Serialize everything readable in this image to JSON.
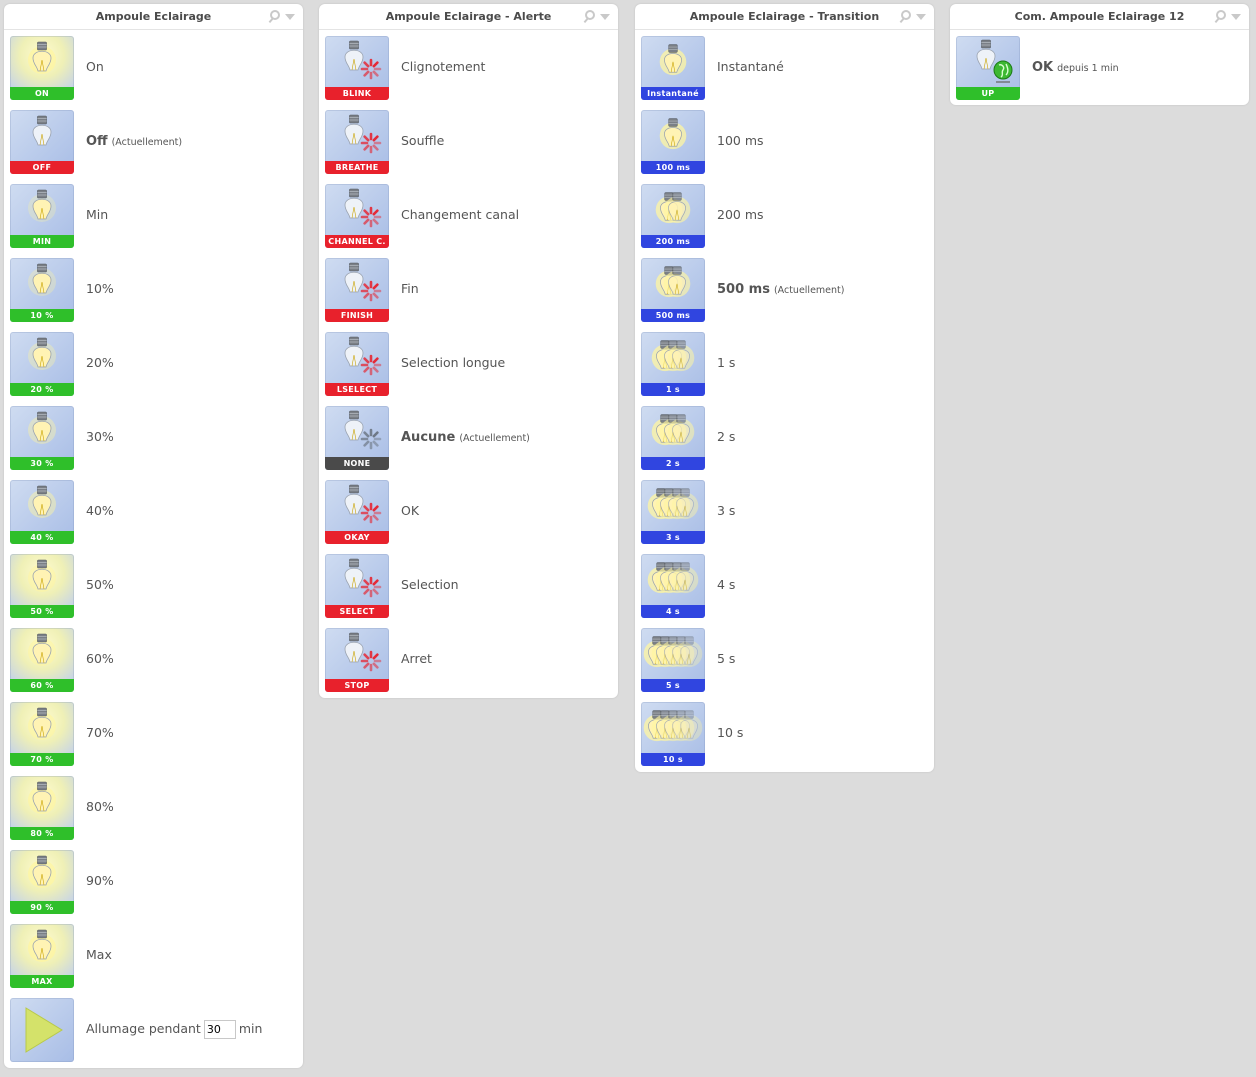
{
  "panels": [
    {
      "title": "Ampoule Eclairage",
      "rows": [
        {
          "label": "On",
          "tile": "ON",
          "color": "green",
          "lit": 1.0,
          "current": false
        },
        {
          "label": "Off",
          "tile": "OFF",
          "color": "red",
          "lit": 0.0,
          "current": true
        },
        {
          "label": "Min",
          "tile": "MIN",
          "color": "green",
          "lit": 0.05,
          "current": false
        },
        {
          "label": "10%",
          "tile": "10 %",
          "color": "green",
          "lit": 0.1,
          "current": false
        },
        {
          "label": "20%",
          "tile": "20 %",
          "color": "green",
          "lit": 0.2,
          "current": false
        },
        {
          "label": "30%",
          "tile": "30 %",
          "color": "green",
          "lit": 0.3,
          "current": false
        },
        {
          "label": "40%",
          "tile": "40 %",
          "color": "green",
          "lit": 0.4,
          "current": false
        },
        {
          "label": "50%",
          "tile": "50 %",
          "color": "green",
          "lit": 0.5,
          "current": false
        },
        {
          "label": "60%",
          "tile": "60 %",
          "color": "green",
          "lit": 0.6,
          "current": false
        },
        {
          "label": "70%",
          "tile": "70 %",
          "color": "green",
          "lit": 0.7,
          "current": false
        },
        {
          "label": "80%",
          "tile": "80 %",
          "color": "green",
          "lit": 0.8,
          "current": false
        },
        {
          "label": "90%",
          "tile": "90 %",
          "color": "green",
          "lit": 0.9,
          "current": false
        },
        {
          "label": "Max",
          "tile": "MAX",
          "color": "green",
          "lit": 1.0,
          "current": false
        }
      ],
      "timer": {
        "label": "Allumage pendant",
        "value": "30",
        "unit": "min"
      }
    },
    {
      "title": "Ampoule Eclairage - Alerte",
      "rows": [
        {
          "label": "Clignotement",
          "tile": "BLINK",
          "color": "red",
          "current": false
        },
        {
          "label": "Souffle",
          "tile": "BREATHE",
          "color": "red",
          "current": false
        },
        {
          "label": "Changement canal",
          "tile": "CHANNEL C.",
          "color": "red",
          "current": false
        },
        {
          "label": "Fin",
          "tile": "FINISH",
          "color": "red",
          "current": false
        },
        {
          "label": "Selection longue",
          "tile": "LSELECT",
          "color": "red",
          "current": false
        },
        {
          "label": "Aucune",
          "tile": "NONE",
          "color": "dark",
          "current": true
        },
        {
          "label": "OK",
          "tile": "OKAY",
          "color": "red",
          "current": false
        },
        {
          "label": "Selection",
          "tile": "SELECT",
          "color": "red",
          "current": false
        },
        {
          "label": "Arret",
          "tile": "STOP",
          "color": "red",
          "current": false
        }
      ]
    },
    {
      "title": "Ampoule Eclairage - Transition",
      "rows": [
        {
          "label": "Instantané",
          "tile": "Instantané",
          "color": "blue",
          "bulbs": 1,
          "current": false
        },
        {
          "label": "100 ms",
          "tile": "100 ms",
          "color": "blue",
          "bulbs": 1,
          "current": false
        },
        {
          "label": "200 ms",
          "tile": "200 ms",
          "color": "blue",
          "bulbs": 2,
          "current": false
        },
        {
          "label": "500 ms",
          "tile": "500 ms",
          "color": "blue",
          "bulbs": 2,
          "current": true
        },
        {
          "label": "1 s",
          "tile": "1 s",
          "color": "blue",
          "bulbs": 3,
          "current": false
        },
        {
          "label": "2 s",
          "tile": "2 s",
          "color": "blue",
          "bulbs": 3,
          "current": false
        },
        {
          "label": "3 s",
          "tile": "3 s",
          "color": "blue",
          "bulbs": 4,
          "current": false
        },
        {
          "label": "4 s",
          "tile": "4 s",
          "color": "blue",
          "bulbs": 4,
          "current": false
        },
        {
          "label": "5 s",
          "tile": "5 s",
          "color": "blue",
          "bulbs": 5,
          "current": false
        },
        {
          "label": "10 s",
          "tile": "10 s",
          "color": "blue",
          "bulbs": 5,
          "current": false
        }
      ]
    },
    {
      "title": "Com. Ampoule Eclairage 12",
      "rows": [
        {
          "label": "OK",
          "suffix": "depuis 1 min",
          "tile": "UP",
          "color": "green",
          "globe": true,
          "current": true
        }
      ]
    }
  ],
  "current_marker": "(Actuellement)",
  "colors": {
    "green": "#2fbf2a",
    "red": "#e8212c",
    "blue": "#3045e0",
    "dark": "#4a4a4a"
  }
}
